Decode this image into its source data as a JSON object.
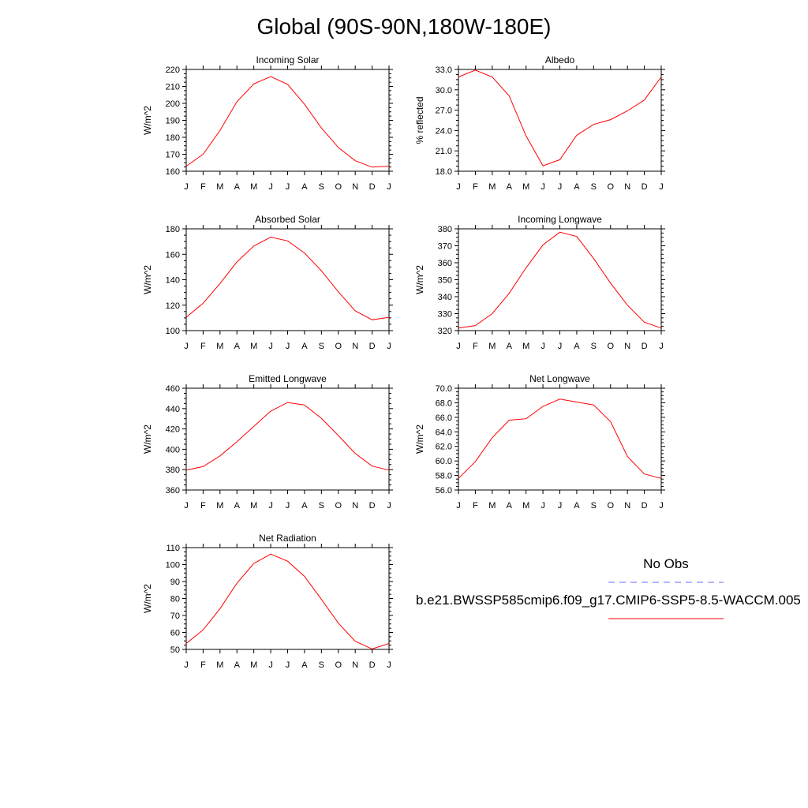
{
  "title": "Global (90S-90N,180W-180E)",
  "colors": {
    "model": "#ff0000",
    "obs": "#6a6aff",
    "axis": "#000000"
  },
  "legend": {
    "obs_label": "No Obs",
    "model_label": "b.e21.BWSSP585cmip6.f09_g17.CMIP6-SSP5-8.5-WACCM.005"
  },
  "chart_data": [
    {
      "type": "line",
      "title": "Incoming Solar",
      "ylabel": "W/m^2",
      "x": [
        "J",
        "F",
        "M",
        "A",
        "M",
        "J",
        "J",
        "A",
        "S",
        "O",
        "N",
        "D",
        "J"
      ],
      "ylim": [
        160,
        220
      ],
      "yticks": [
        "160",
        "170",
        "180",
        "190",
        "200",
        "210",
        "220"
      ],
      "series": [
        {
          "values": [
            163,
            170,
            184,
            201,
            211.5,
            215.8,
            211.2,
            199.5,
            185.5,
            174,
            166.2,
            162.4,
            163
          ]
        }
      ]
    },
    {
      "type": "line",
      "title": "Albedo",
      "ylabel": "% reflected",
      "x": [
        "J",
        "F",
        "M",
        "A",
        "M",
        "J",
        "J",
        "A",
        "S",
        "O",
        "N",
        "D",
        "J"
      ],
      "ylim": [
        18,
        33
      ],
      "yticks": [
        "18.0",
        "21.0",
        "24.0",
        "27.0",
        "30.0",
        "33.0"
      ],
      "series": [
        {
          "values": [
            31.9,
            32.9,
            31.9,
            29.1,
            23.2,
            18.8,
            19.7,
            23.3,
            24.9,
            25.6,
            26.9,
            28.5,
            31.9
          ]
        }
      ]
    },
    {
      "type": "line",
      "title": "Absorbed Solar",
      "ylabel": "W/m^2",
      "x": [
        "J",
        "F",
        "M",
        "A",
        "M",
        "J",
        "J",
        "A",
        "S",
        "O",
        "N",
        "D",
        "J"
      ],
      "ylim": [
        100,
        180
      ],
      "yticks": [
        "100",
        "120",
        "140",
        "160",
        "180"
      ],
      "series": [
        {
          "values": [
            110.5,
            121.5,
            137,
            154,
            166.5,
            173.5,
            170.5,
            161,
            147,
            130.5,
            115.5,
            108.5,
            110.5
          ]
        }
      ]
    },
    {
      "type": "line",
      "title": "Incoming Longwave",
      "ylabel": "W/m^2",
      "x": [
        "J",
        "F",
        "M",
        "A",
        "M",
        "J",
        "J",
        "A",
        "S",
        "O",
        "N",
        "D",
        "J"
      ],
      "ylim": [
        320,
        380
      ],
      "yticks": [
        "320",
        "330",
        "340",
        "350",
        "360",
        "370",
        "380"
      ],
      "series": [
        {
          "values": [
            321.5,
            323,
            330,
            342,
            357,
            370.5,
            378,
            375.5,
            362.5,
            348,
            335,
            325,
            321.5
          ]
        }
      ]
    },
    {
      "type": "line",
      "title": "Emitted Longwave",
      "ylabel": "W/m^2",
      "x": [
        "J",
        "F",
        "M",
        "A",
        "M",
        "J",
        "J",
        "A",
        "S",
        "O",
        "N",
        "D",
        "J"
      ],
      "ylim": [
        360,
        460
      ],
      "yticks": [
        "360",
        "380",
        "400",
        "420",
        "440",
        "460"
      ],
      "series": [
        {
          "values": [
            379.5,
            383,
            393.5,
            407.5,
            422.5,
            437.5,
            446,
            443.5,
            430.5,
            413.5,
            396,
            383.5,
            379.5
          ]
        }
      ]
    },
    {
      "type": "line",
      "title": "Net Longwave",
      "ylabel": "W/m^2",
      "x": [
        "J",
        "F",
        "M",
        "A",
        "M",
        "J",
        "J",
        "A",
        "S",
        "O",
        "N",
        "D",
        "J"
      ],
      "ylim": [
        56,
        70
      ],
      "yticks": [
        "56.0",
        "58.0",
        "60.0",
        "62.0",
        "64.0",
        "66.0",
        "68.0",
        "70.0"
      ],
      "series": [
        {
          "values": [
            57.6,
            59.9,
            63.2,
            65.6,
            65.8,
            67.5,
            68.5,
            68.1,
            67.7,
            65.4,
            60.6,
            58.2,
            57.6
          ]
        }
      ]
    },
    {
      "type": "line",
      "title": "Net Radiation",
      "ylabel": "W/m^2",
      "x": [
        "J",
        "F",
        "M",
        "A",
        "M",
        "J",
        "J",
        "A",
        "S",
        "O",
        "N",
        "D",
        "J"
      ],
      "ylim": [
        50,
        110
      ],
      "yticks": [
        "50",
        "60",
        "70",
        "80",
        "90",
        "100",
        "110"
      ],
      "series": [
        {
          "values": [
            53.5,
            61.5,
            74,
            89,
            100.7,
            106.2,
            102,
            93,
            79.5,
            65.5,
            54.8,
            50.3,
            53.5
          ]
        }
      ]
    }
  ]
}
